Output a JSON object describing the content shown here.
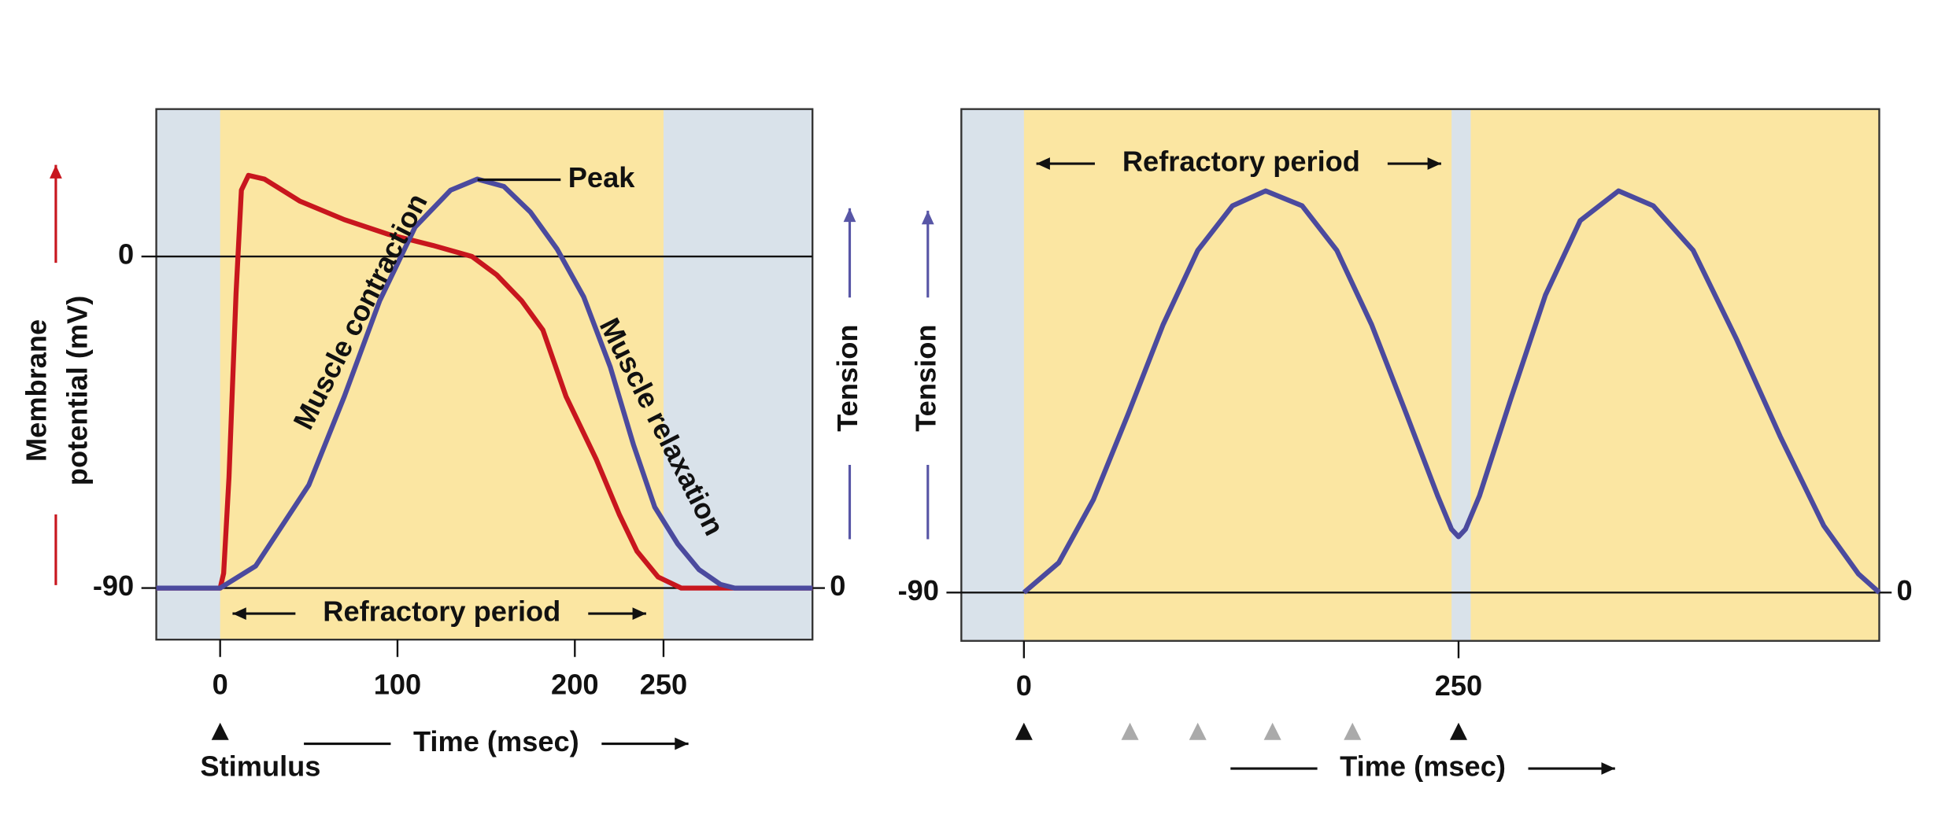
{
  "chart_data": [
    {
      "type": "line",
      "xlim": [
        -36,
        334
      ],
      "ylim": [
        -104,
        40
      ],
      "y2lim": [
        -14,
        130
      ],
      "xticks": [
        0,
        100,
        200,
        250
      ],
      "yticks": [
        -90,
        0
      ],
      "y2ticks": [
        0
      ],
      "background": "#d9e2ea",
      "shade_color": "#fbe6a2",
      "shaded_spans": [
        [
          0,
          250
        ]
      ],
      "refractory_span": [
        0,
        250
      ],
      "stimuli": [
        0
      ],
      "series": [
        {
          "color": "#c8161e",
          "x": [
            -36,
            0,
            2,
            5,
            9,
            12,
            16,
            25,
            45,
            70,
            95,
            120,
            142,
            156,
            170,
            182,
            195,
            212,
            225,
            235,
            247,
            260,
            334
          ],
          "values": [
            -90,
            -90,
            -86,
            -60,
            -10,
            18,
            22,
            21,
            15,
            10,
            6,
            3,
            0,
            -5,
            -12,
            -20,
            -38,
            -55,
            -70,
            -80,
            -87,
            -90,
            -90
          ]
        },
        {
          "color": "#4b4a9e",
          "axis": "y2",
          "x": [
            -36,
            0,
            20,
            50,
            70,
            90,
            110,
            130,
            145,
            160,
            175,
            190,
            205,
            220,
            233,
            245,
            258,
            270,
            282,
            290,
            334
          ],
          "values": [
            0,
            0,
            6,
            28,
            52,
            78,
            98,
            108,
            111,
            109,
            102,
            92,
            79,
            60,
            39,
            22,
            12,
            5,
            1,
            0,
            0
          ]
        }
      ],
      "y_label": [
        "Membrane",
        "potential (mV)"
      ],
      "y_label_color": "#c8161e",
      "y2_label": "Tension",
      "y2_label_color": "#5856a6",
      "x_label": "Time (msec)",
      "stimulus_label": "Stimulus",
      "refractory_label": "Refractory period",
      "peak_label": "Peak",
      "contraction_label": "Muscle contraction",
      "relaxation_label": "Muscle relaxation"
    },
    {
      "type": "line",
      "xlim": [
        -36,
        492
      ],
      "ylim": [
        -103,
        40
      ],
      "y2lim": [
        -13,
        130
      ],
      "xticks": [
        0,
        250
      ],
      "yticks": [
        -90
      ],
      "y2ticks": [
        0
      ],
      "background": "#d9e2ea",
      "shade_color": "#fbe6a2",
      "shaded_spans": [
        [
          0,
          246
        ],
        [
          257,
          492
        ]
      ],
      "refractory_span": [
        0,
        250
      ],
      "stimuli": [
        0,
        250
      ],
      "stimuli_gray": [
        61,
        100,
        143,
        189
      ],
      "series": [
        {
          "color": "#4b4a9e",
          "axis": "y2",
          "x": [
            0,
            20,
            40,
            60,
            80,
            100,
            120,
            139,
            160,
            180,
            200,
            220,
            238,
            246,
            250,
            254,
            262,
            280,
            300,
            320,
            342,
            362,
            385,
            410,
            435,
            460,
            480,
            492
          ],
          "values": [
            0,
            8,
            25,
            48,
            72,
            92,
            104,
            108,
            104,
            92,
            72,
            48,
            26,
            17,
            15,
            17,
            26,
            52,
            80,
            100,
            108,
            104,
            92,
            68,
            42,
            18,
            5,
            0
          ]
        }
      ],
      "y_label": "Tension",
      "y_label_color": "#5856a6",
      "x_label": "Time (msec)",
      "refractory_label": "Refractory period"
    }
  ]
}
